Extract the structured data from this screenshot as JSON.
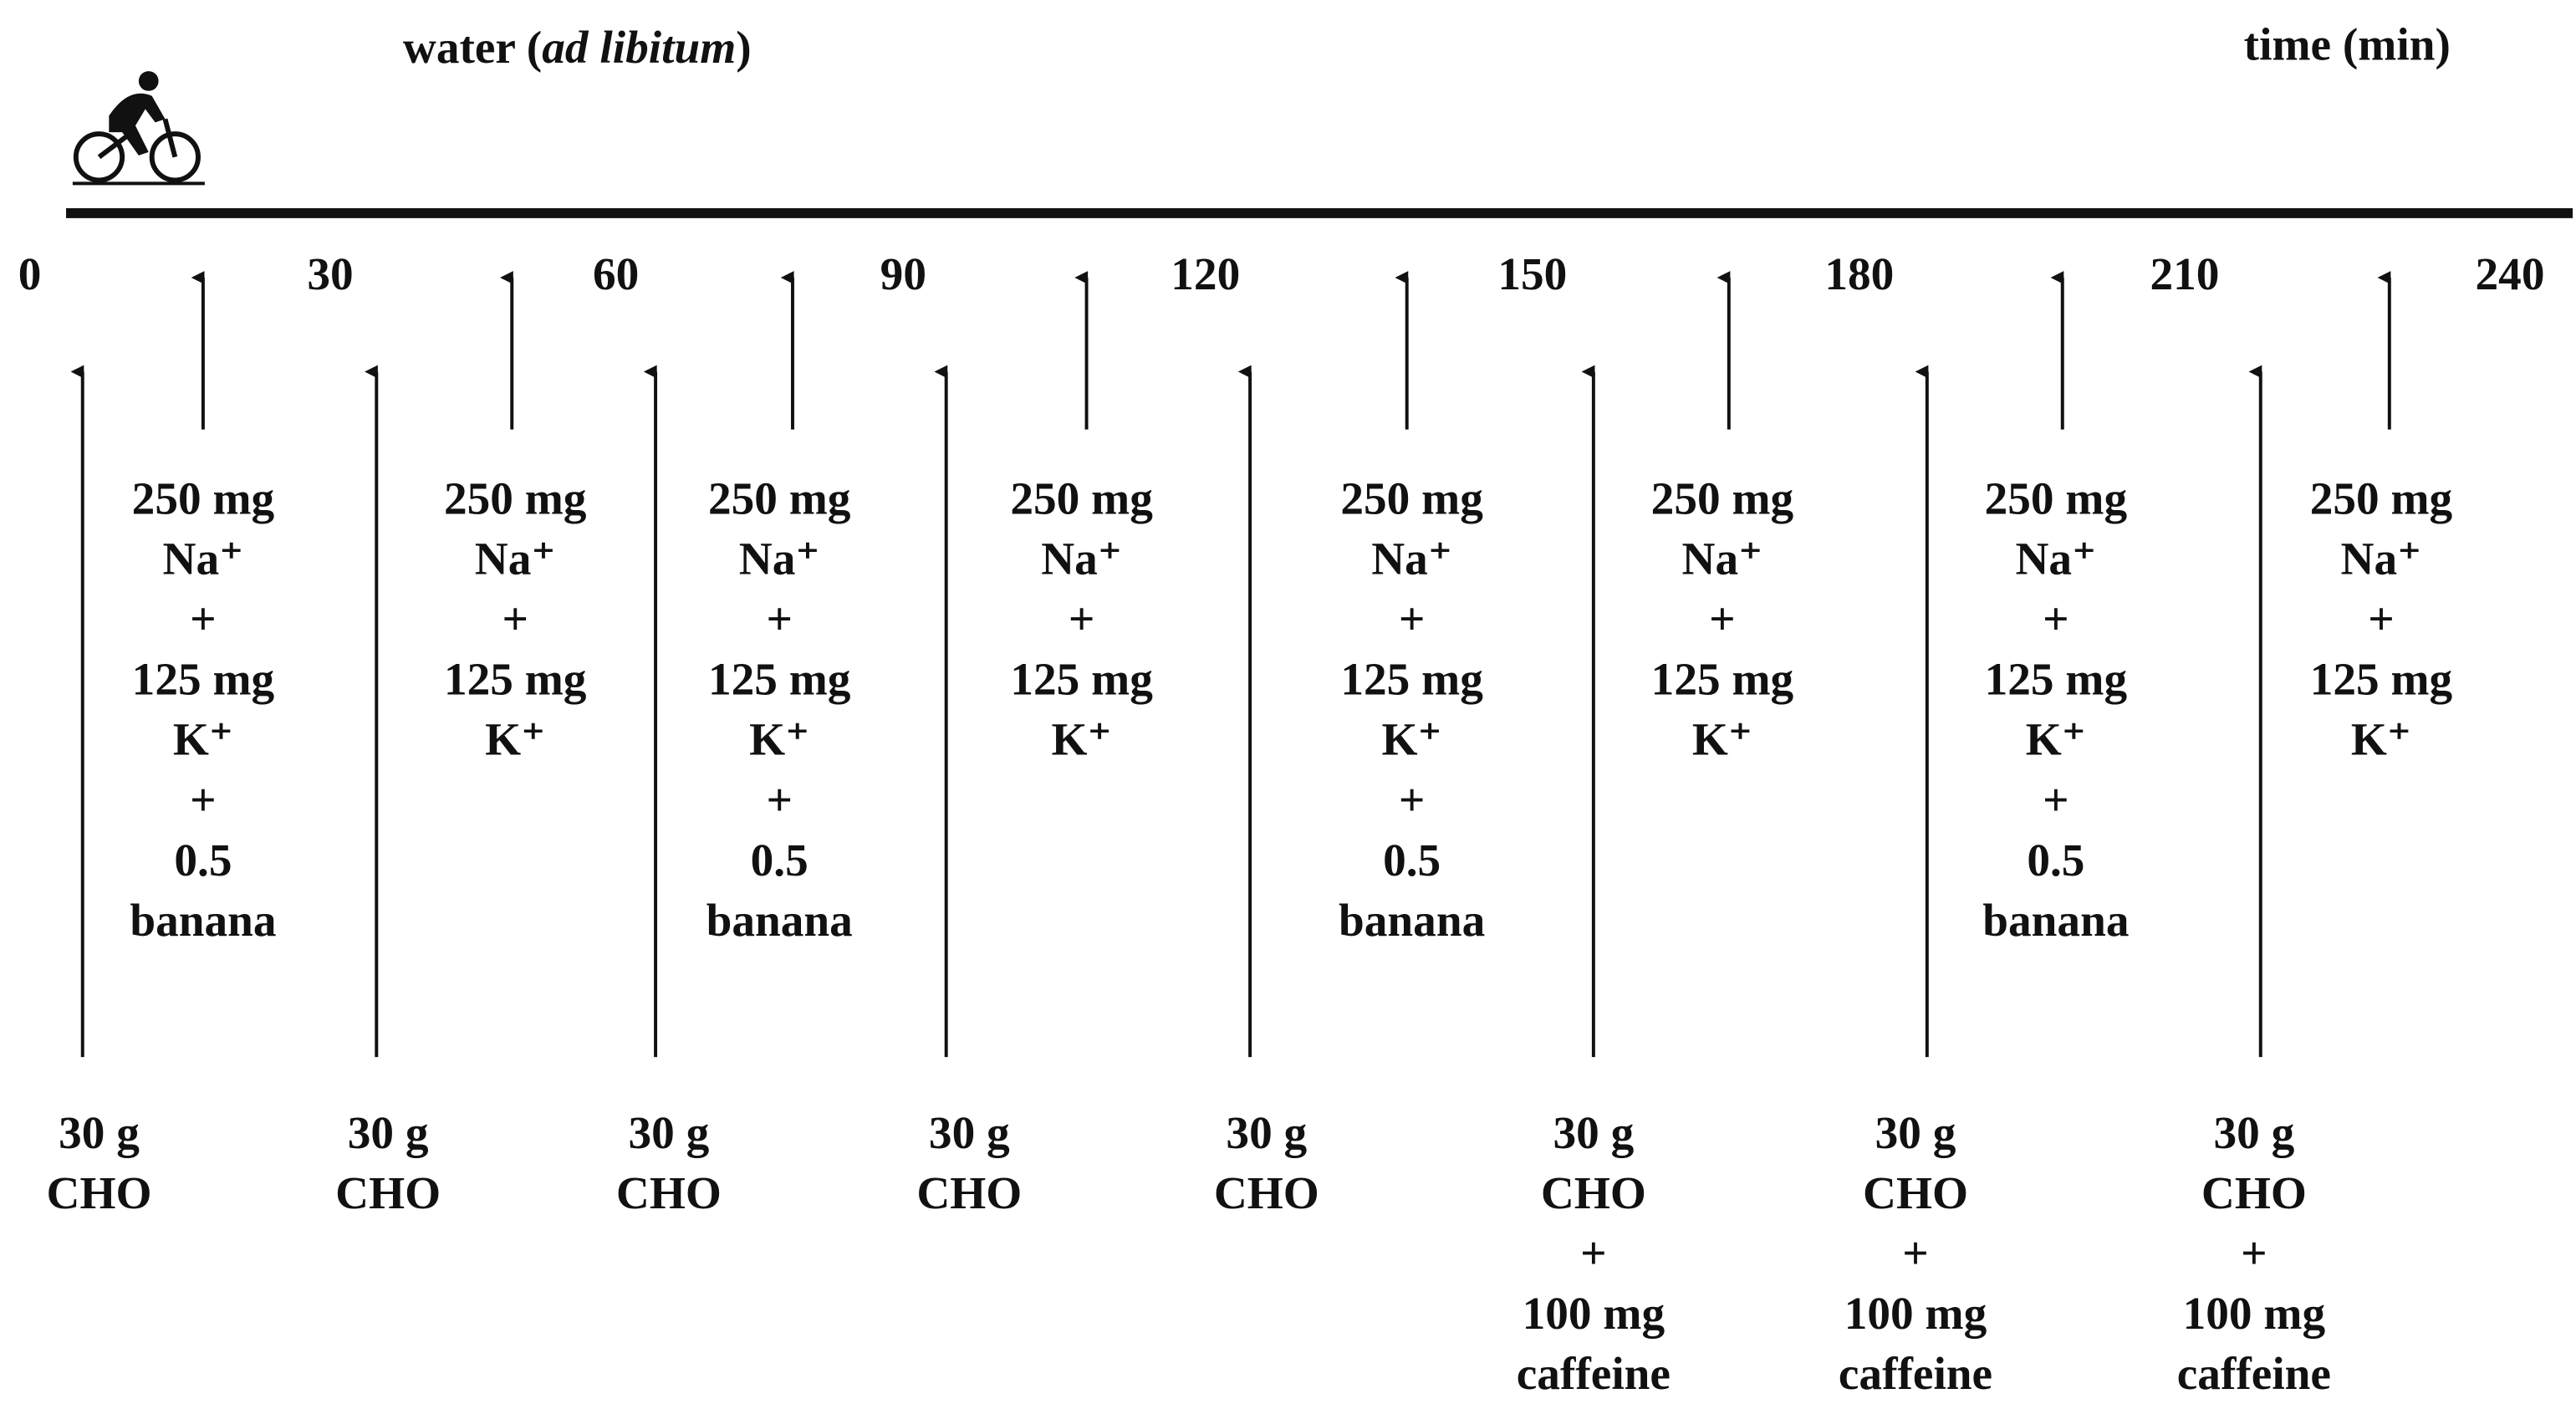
{
  "header": {
    "water_prefix": "water (",
    "water_italic": "ad libitum",
    "water_suffix": ")",
    "time_label": "time (min)"
  },
  "ticks": [
    0,
    30,
    60,
    90,
    120,
    150,
    180,
    210,
    240
  ],
  "top_items": [
    {
      "lines": [
        "250 mg",
        "Na⁺",
        "+",
        "125 mg",
        "K⁺",
        "+",
        "0.5",
        "banana"
      ]
    },
    {
      "lines": [
        "250 mg",
        "Na⁺",
        "+",
        "125 mg",
        "K⁺"
      ]
    },
    {
      "lines": [
        "250 mg",
        "Na⁺",
        "+",
        "125 mg",
        "K⁺",
        "+",
        "0.5",
        "banana"
      ]
    },
    {
      "lines": [
        "250 mg",
        "Na⁺",
        "+",
        "125 mg",
        "K⁺"
      ]
    },
    {
      "lines": [
        "250 mg",
        "Na⁺",
        "+",
        "125 mg",
        "K⁺",
        "+",
        "0.5",
        "banana"
      ]
    },
    {
      "lines": [
        "250 mg",
        "Na⁺",
        "+",
        "125 mg",
        "K⁺"
      ]
    },
    {
      "lines": [
        "250 mg",
        "Na⁺",
        "+",
        "125 mg",
        "K⁺",
        "+",
        "0.5",
        "banana"
      ]
    },
    {
      "lines": [
        "250 mg",
        "Na⁺",
        "+",
        "125 mg",
        "K⁺"
      ]
    }
  ],
  "bottom_items": [
    {
      "lines": [
        "30 g",
        "CHO"
      ]
    },
    {
      "lines": [
        "30 g",
        "CHO"
      ]
    },
    {
      "lines": [
        "30 g",
        "CHO"
      ]
    },
    {
      "lines": [
        "30 g",
        "CHO"
      ]
    },
    {
      "lines": [
        "30 g",
        "CHO"
      ]
    },
    {
      "lines": [
        "30 g",
        "CHO",
        "+",
        "100 mg",
        "caffeine"
      ]
    },
    {
      "lines": [
        "30 g",
        "CHO",
        "+",
        "100 mg",
        "caffeine"
      ]
    },
    {
      "lines": [
        "30 g",
        "CHO",
        "+",
        "100 mg",
        "caffeine"
      ]
    }
  ]
}
